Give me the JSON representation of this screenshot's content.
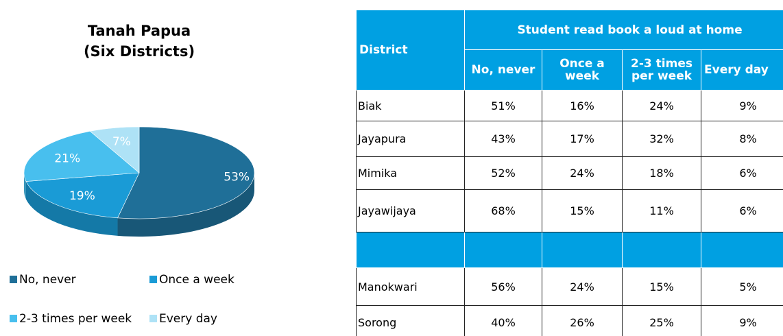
{
  "chart_data": {
    "type": "pie3d",
    "title": "Tanah Papua",
    "subtitle": "(Six Districts)",
    "categories": [
      "No, never",
      "Once a week",
      "2-3 times per week",
      "Every day"
    ],
    "values": [
      53,
      19,
      21,
      7
    ],
    "value_labels": [
      "53%",
      "19%",
      "21%",
      "7%"
    ],
    "colors": [
      "#1f6f98",
      "#1a9bd6",
      "#48bfee",
      "#aee2f6"
    ],
    "legend": "bottom"
  },
  "table": {
    "header": "District",
    "group": "Student read book a loud at home",
    "columns": [
      "No, never",
      "Once a week",
      "2-3 times per week",
      "Every day"
    ],
    "rows": [
      [
        "Biak",
        "51%",
        "16%",
        "24%",
        "9%"
      ],
      [
        "Jayapura",
        "43%",
        "17%",
        "32%",
        "8%"
      ],
      [
        "Mimika",
        "52%",
        "24%",
        "18%",
        "6%"
      ],
      [
        "Jayawijaya",
        "68%",
        "15%",
        "11%",
        "6%"
      ],
      [
        "Manokwari",
        "56%",
        "24%",
        "15%",
        "5%"
      ],
      [
        "Sorong",
        "40%",
        "26%",
        "25%",
        "9%"
      ]
    ]
  }
}
